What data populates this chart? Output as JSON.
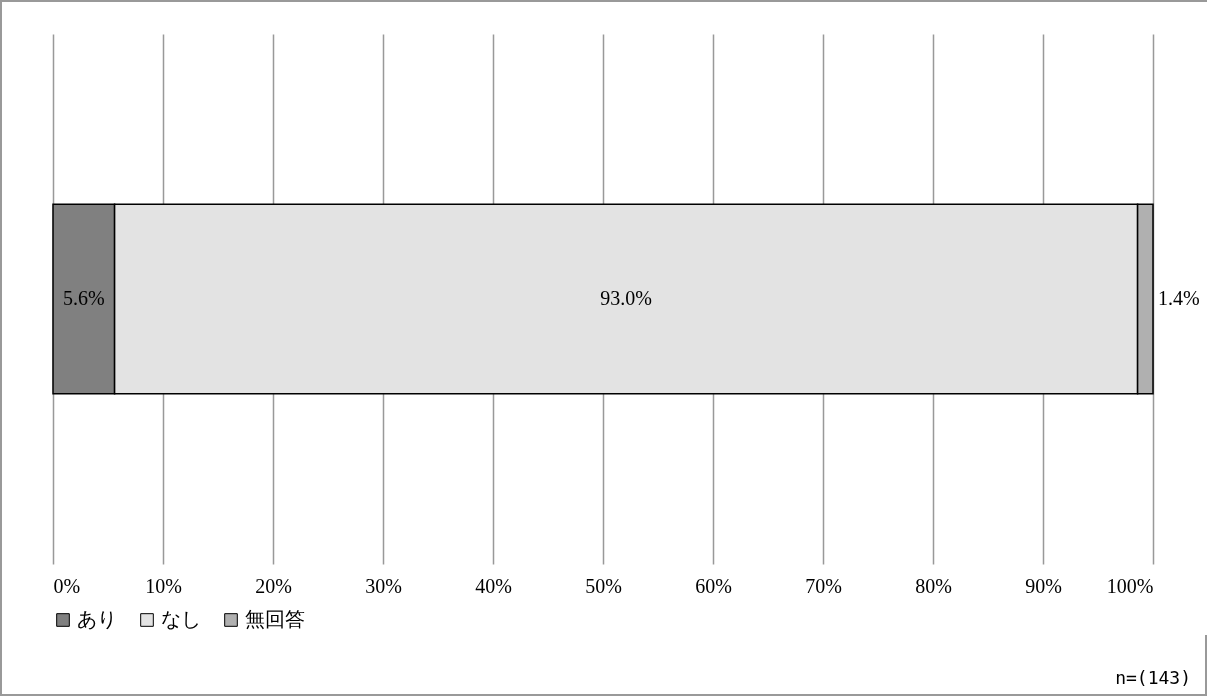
{
  "chart_data": {
    "type": "bar",
    "orientation": "horizontal",
    "stacked": true,
    "categories": [
      null
    ],
    "series": [
      {
        "name": "あり",
        "color": "#808080",
        "values": [
          5.6
        ]
      },
      {
        "name": "なし",
        "color": "#e3e3e3",
        "values": [
          93.0
        ]
      },
      {
        "name": "無回答",
        "color": "#b0b0b0",
        "values": [
          1.4
        ]
      }
    ],
    "value_labels": [
      [
        "5.6%"
      ],
      [
        "93.0%"
      ],
      [
        "1.4%"
      ]
    ],
    "xlim": [
      0,
      100
    ],
    "xticks": [
      {
        "value": 0,
        "label": "0%"
      },
      {
        "value": 10,
        "label": "10%"
      },
      {
        "value": 20,
        "label": "20%"
      },
      {
        "value": 30,
        "label": "30%"
      },
      {
        "value": 40,
        "label": "40%"
      },
      {
        "value": 50,
        "label": "50%"
      },
      {
        "value": 60,
        "label": "60%"
      },
      {
        "value": 70,
        "label": "70%"
      },
      {
        "value": 80,
        "label": "80%"
      },
      {
        "value": 90,
        "label": "90%"
      },
      {
        "value": 100,
        "label": "100%"
      }
    ],
    "grid": "x",
    "legend": "bottom",
    "annotations": [
      "n=(143)"
    ]
  }
}
